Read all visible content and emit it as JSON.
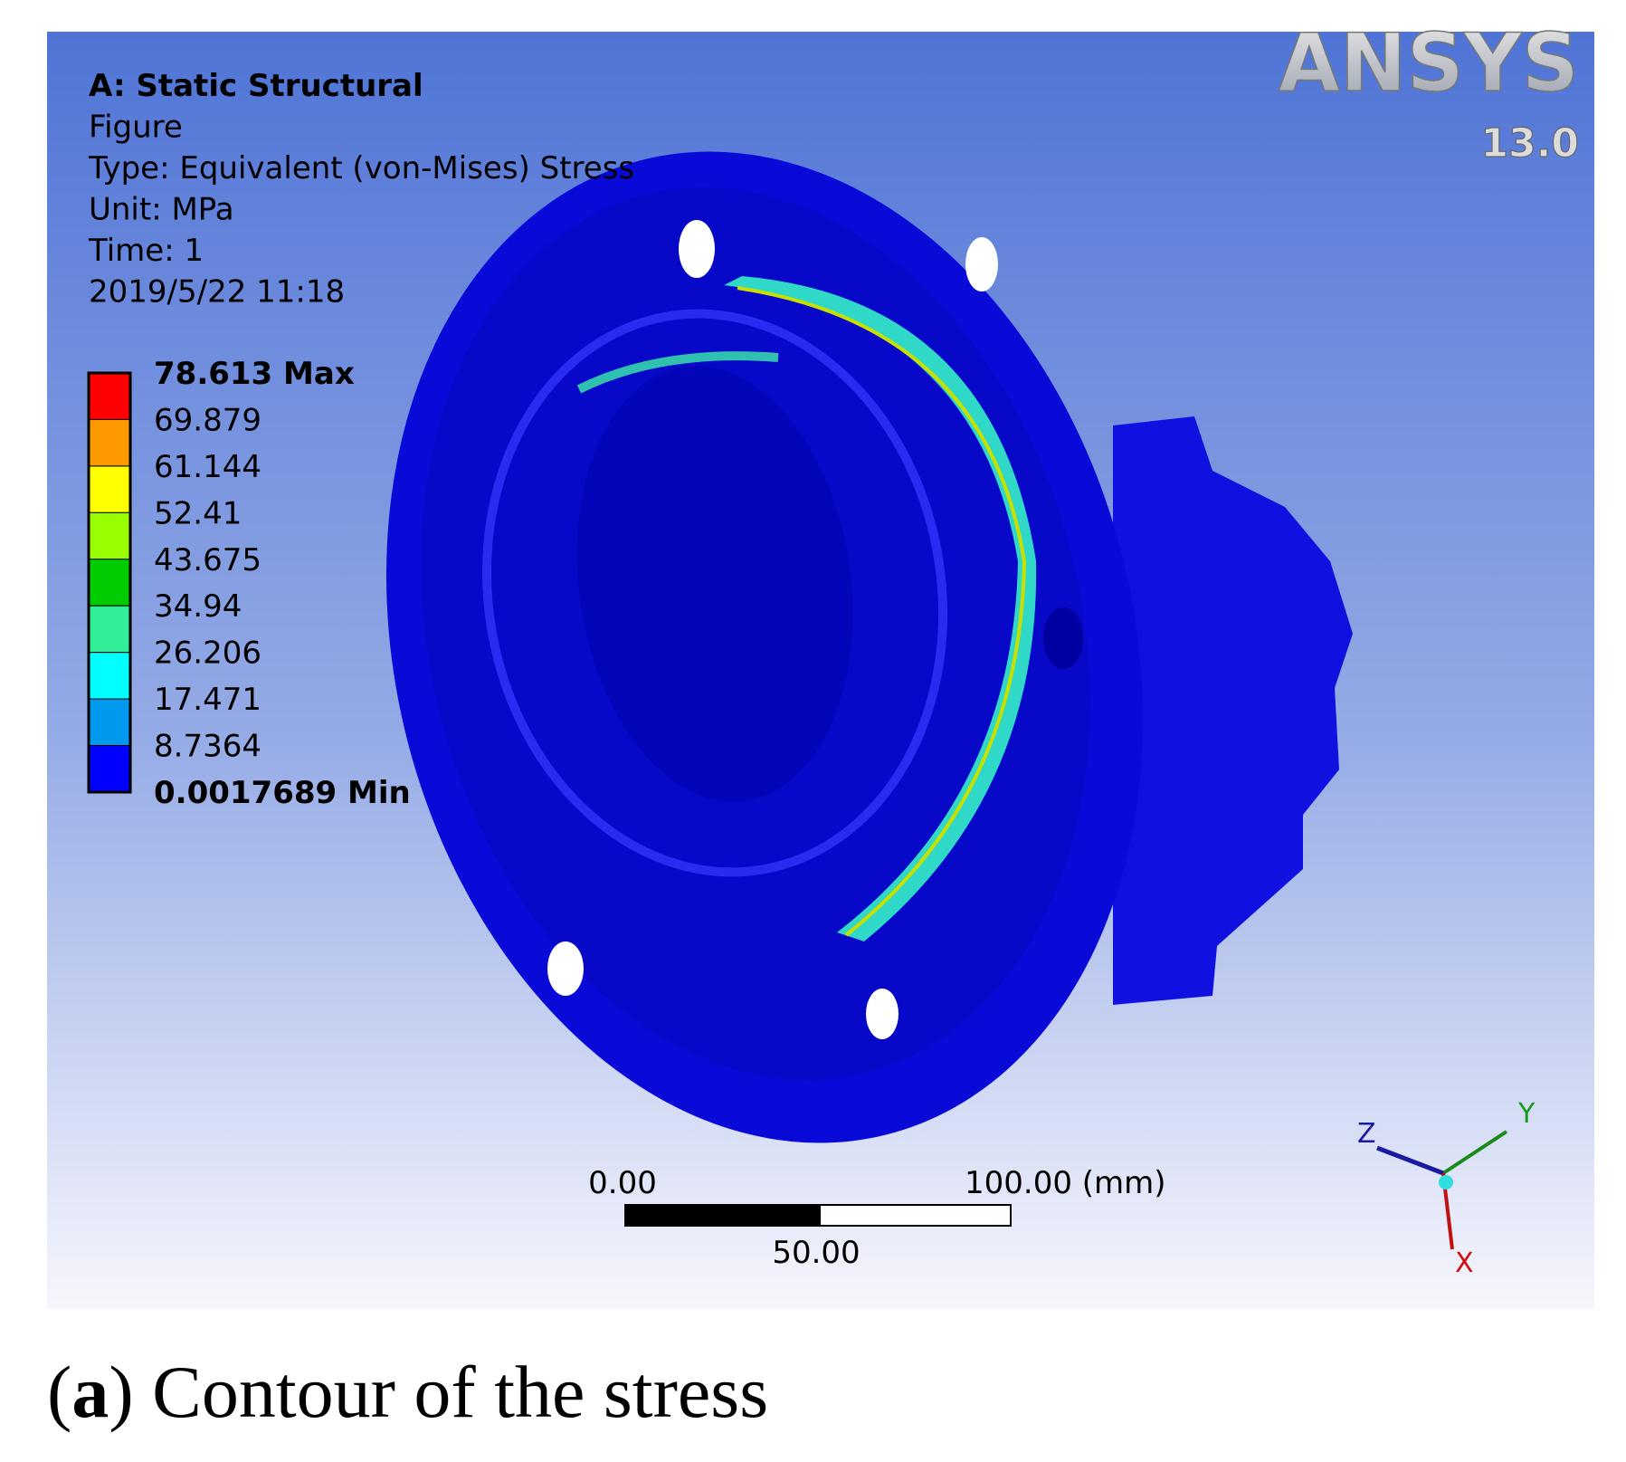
{
  "viewport": {
    "info": [
      "A: Static Structural",
      "Figure",
      "Type: Equivalent (von-Mises) Stress",
      "Unit: MPa",
      "Time: 1",
      "2019/5/22 11:18"
    ],
    "legend": {
      "labels": [
        "78.613 Max",
        "69.879",
        "61.144",
        "52.41",
        "43.675",
        "34.94",
        "26.206",
        "17.471",
        "8.7364",
        "0.0017689 Min"
      ],
      "colors": [
        "#ff0000",
        "#ff9900",
        "#ffff00",
        "#99ff00",
        "#00cc00",
        "#33ee99",
        "#00ffff",
        "#0099ee",
        "#0000ff"
      ]
    },
    "logo": {
      "name": "ANSYS",
      "version": "13.0"
    },
    "scale_bar": {
      "start": "0.00",
      "end": "100.00 (mm)",
      "middle": "50.00"
    },
    "triad": {
      "x": "X",
      "y": "Y",
      "z": "Z"
    }
  },
  "caption": {
    "letter": "a",
    "text": "Contour of the stress"
  }
}
